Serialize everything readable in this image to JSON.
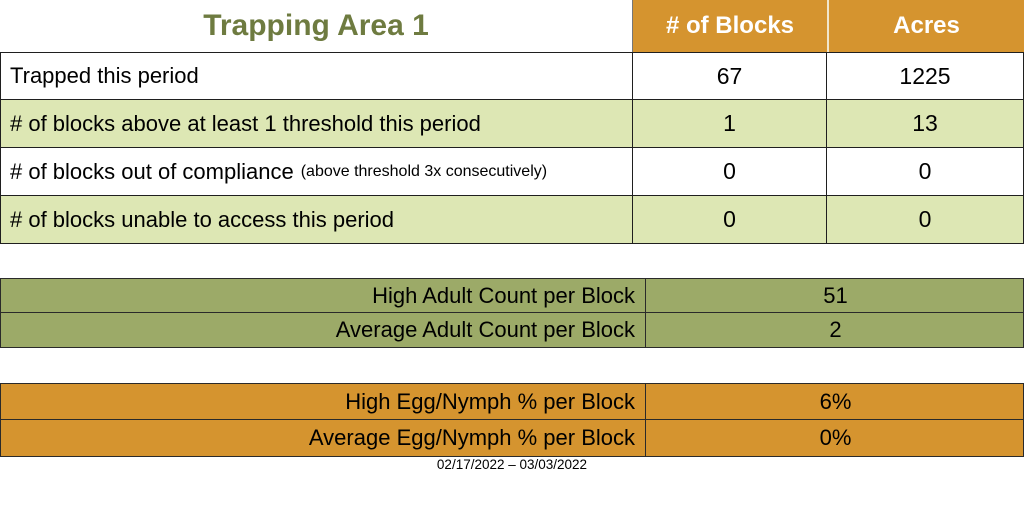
{
  "title": "Trapping Area 1",
  "main_table": {
    "columns": {
      "blocks": "# of Blocks",
      "acres": "Acres"
    },
    "rows": [
      {
        "label": "Trapped this period",
        "note": "",
        "blocks": "67",
        "acres": "1225"
      },
      {
        "label": "# of blocks above at least 1 threshold this period",
        "note": "",
        "blocks": "1",
        "acres": "13"
      },
      {
        "label": "# of blocks out of compliance",
        "note": "(above threshold 3x consecutively)",
        "blocks": "0",
        "acres": "0"
      },
      {
        "label": "# of blocks unable to access this period",
        "note": "",
        "blocks": "0",
        "acres": "0"
      }
    ]
  },
  "adult_section": {
    "rows": [
      {
        "label": "High Adult Count per Block",
        "value": "51"
      },
      {
        "label": "Average Adult Count per Block",
        "value": "2"
      }
    ]
  },
  "egg_section": {
    "rows": [
      {
        "label": "High Egg/Nymph % per Block",
        "value": "6%"
      },
      {
        "label": "Average Egg/Nymph % per Block",
        "value": "0%"
      }
    ]
  },
  "footer": {
    "date_range": "02/17/2022 – 03/03/2022"
  },
  "colors": {
    "header_orange": "#D5942F",
    "row_light_green": "#DDE7B4",
    "section_olive": "#9CAA68",
    "title_green": "#6E7B40",
    "border_dark": "#1f1f1f"
  }
}
